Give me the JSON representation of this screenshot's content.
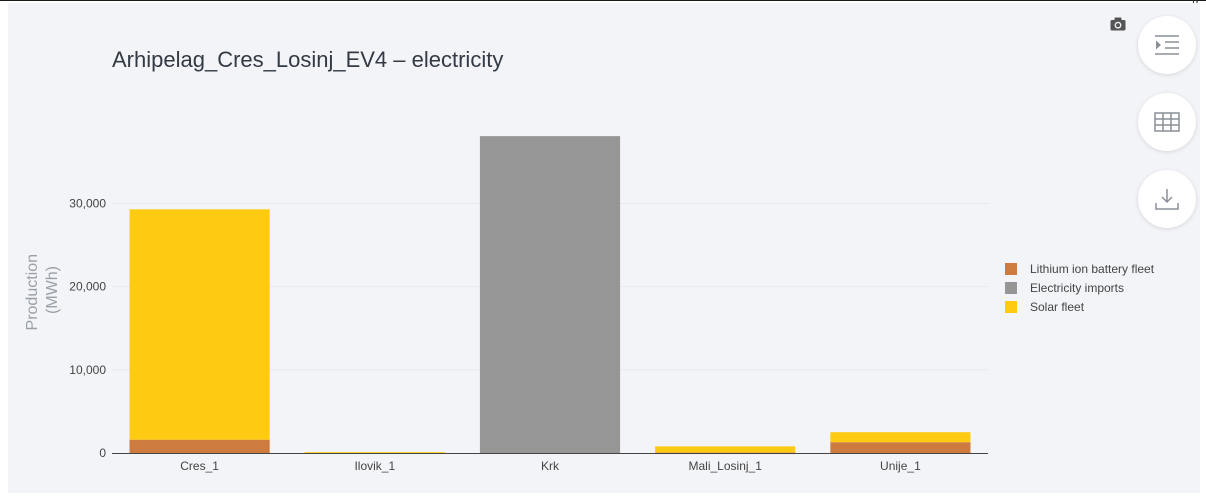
{
  "chart_data": {
    "type": "bar",
    "stacked": true,
    "title": "Arhipelag_Cres_Losinj_EV4 – electricity",
    "ylabel": "Production (MWh)",
    "ylabel_lines": [
      "Production",
      "(MWh)"
    ],
    "xlabel": "",
    "categories": [
      "Cres_1",
      "Ilovik_1",
      "Krk",
      "Mali_Losinj_1",
      "Unije_1"
    ],
    "series": [
      {
        "name": "Lithium ion battery fleet",
        "color": "#cd7b3f",
        "values": [
          1600,
          0,
          0,
          50,
          1300
        ]
      },
      {
        "name": "Electricity imports",
        "color": "#969696",
        "values": [
          0,
          0,
          38100,
          0,
          0
        ]
      },
      {
        "name": "Solar fleet",
        "color": "#ffcb12",
        "values": [
          27700,
          100,
          0,
          750,
          1200
        ]
      }
    ],
    "yticks": [
      0,
      10000,
      20000,
      30000
    ],
    "ytick_labels": [
      "0",
      "10,000",
      "20,000",
      "30,000"
    ],
    "ylim": [
      0,
      41000
    ],
    "grid": true,
    "legend_position": "right"
  },
  "toolbar": {
    "camera_icon": "camera-icon",
    "buttons": [
      "indent-list-icon",
      "table-icon",
      "download-icon"
    ]
  }
}
